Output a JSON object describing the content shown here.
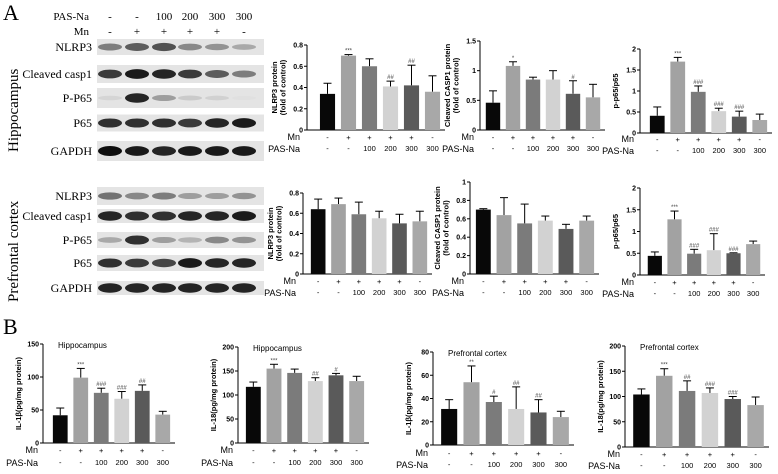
{
  "panel_labels": {
    "a": "A",
    "b": "B"
  },
  "regions": {
    "hippocampus": "Hippocampus",
    "prefrontal": "Prefrontal cortex"
  },
  "blot": {
    "header_pas_label": "PAS-Na",
    "header_mn_label": "Mn",
    "pas_values": [
      "-",
      "-",
      "100",
      "200",
      "300",
      "300"
    ],
    "mn_values": [
      "-",
      "+",
      "+",
      "+",
      "+",
      "-"
    ],
    "hippocampus_rows": [
      {
        "label": "NLRP3",
        "intensity": [
          0.5,
          0.65,
          0.7,
          0.45,
          0.4,
          0.3
        ]
      },
      {
        "label": "Cleaved casp1",
        "intensity": [
          0.8,
          0.95,
          0.9,
          0.8,
          0.65,
          0.5
        ]
      },
      {
        "label": "P-P65",
        "intensity": [
          0.1,
          0.9,
          0.35,
          0.15,
          0.12,
          0.05
        ]
      },
      {
        "label": "P65",
        "intensity": [
          0.85,
          0.85,
          0.85,
          0.8,
          0.9,
          0.95
        ]
      },
      {
        "label": "GAPDH",
        "intensity": [
          1,
          0.95,
          0.9,
          0.95,
          0.95,
          0.95
        ]
      }
    ],
    "prefrontal_rows": [
      {
        "label": "NLRP3",
        "intensity": [
          0.55,
          0.45,
          0.5,
          0.35,
          0.35,
          0.4
        ]
      },
      {
        "label": "Cleaved casp1",
        "intensity": [
          0.9,
          0.85,
          0.85,
          0.9,
          0.9,
          0.95
        ]
      },
      {
        "label": "P-P65",
        "intensity": [
          0.3,
          0.85,
          0.35,
          0.25,
          0.45,
          0.4
        ]
      },
      {
        "label": "P65",
        "intensity": [
          0.85,
          0.8,
          0.75,
          0.95,
          0.9,
          0.9
        ]
      },
      {
        "label": "GAPDH",
        "intensity": [
          0.9,
          0.9,
          0.9,
          0.9,
          0.9,
          0.9
        ]
      }
    ]
  },
  "bar_colors": [
    "#080808",
    "#a2a2a2",
    "#7b7b7b",
    "#d2d2d2",
    "#5a5a5a",
    "#a8a8a8"
  ],
  "chart_data": [
    {
      "id": "a-hip-nlrp3",
      "type": "bar",
      "title": "",
      "ylabel": "NLRP3 protein\n(fold of control)",
      "ylim": [
        0,
        0.8
      ],
      "yticks": [
        "0.0",
        "0.2",
        "0.4",
        "0.6",
        "0.8"
      ],
      "tick_values": [
        0,
        0.2,
        0.4,
        0.6,
        0.8
      ],
      "row_labels": [
        "Mn",
        "PAS-Na"
      ],
      "mn": [
        "-",
        "+",
        "+",
        "+",
        "+",
        "-"
      ],
      "pas": [
        "-",
        "-",
        "100",
        "200",
        "300",
        "300"
      ],
      "values": [
        0.34,
        0.7,
        0.6,
        0.41,
        0.42,
        0.36
      ],
      "errors": [
        0.1,
        0.01,
        0.07,
        0.05,
        0.19,
        0.15
      ],
      "significance": [
        "",
        "***",
        "",
        "##",
        "##",
        ""
      ]
    },
    {
      "id": "a-hip-casp1",
      "type": "bar",
      "title": "",
      "ylabel": "Cleaved CASP1 protein\n(fold of control)",
      "ylim": [
        0,
        1.5
      ],
      "yticks": [
        "0.0",
        "0.5",
        "1.0",
        "1.5"
      ],
      "tick_values": [
        0,
        0.5,
        1.0,
        1.5
      ],
      "row_labels": [
        "Mn",
        "PAS-Na"
      ],
      "mn": [
        "-",
        "+",
        "+",
        "+",
        "+",
        "-"
      ],
      "pas": [
        "-",
        "-",
        "100",
        "200",
        "300",
        "300"
      ],
      "values": [
        0.46,
        1.08,
        0.85,
        0.85,
        0.61,
        0.55
      ],
      "errors": [
        0.2,
        0.07,
        0.04,
        0.15,
        0.22,
        0.22
      ],
      "significance": [
        "",
        "*",
        "",
        "",
        "#",
        ""
      ]
    },
    {
      "id": "a-hip-p65",
      "type": "bar",
      "title": "",
      "ylabel": "p-p65/p65",
      "ylim": [
        0,
        2.0
      ],
      "yticks": [
        "0.0",
        "0.5",
        "1.0",
        "1.5",
        "2.0"
      ],
      "tick_values": [
        0,
        0.5,
        1.0,
        1.5,
        2.0
      ],
      "row_labels": [
        "Mn",
        "PAS-Na"
      ],
      "mn": [
        "-",
        "+",
        "+",
        "+",
        "+",
        "-"
      ],
      "pas": [
        "-",
        "-",
        "100",
        "200",
        "300",
        "300"
      ],
      "values": [
        0.41,
        1.7,
        0.98,
        0.52,
        0.39,
        0.31
      ],
      "errors": [
        0.21,
        0.1,
        0.14,
        0.07,
        0.13,
        0.14
      ],
      "significance": [
        "",
        "***",
        "###",
        "###",
        "###",
        ""
      ]
    },
    {
      "id": "a-pfc-nlrp3",
      "type": "bar",
      "title": "",
      "ylabel": "NLRP3 protein\n(fold of control)",
      "ylim": [
        0,
        0.8
      ],
      "yticks": [
        "0.0",
        "0.2",
        "0.4",
        "0.6",
        "0.8"
      ],
      "tick_values": [
        0,
        0.2,
        0.4,
        0.6,
        0.8
      ],
      "row_labels": [
        "Mn",
        "PAS-Na"
      ],
      "mn": [
        "-",
        "+",
        "+",
        "+",
        "+",
        "-"
      ],
      "pas": [
        "-",
        "-",
        "100",
        "200",
        "300",
        "300"
      ],
      "values": [
        0.64,
        0.69,
        0.59,
        0.55,
        0.5,
        0.52
      ],
      "errors": [
        0.1,
        0.06,
        0.12,
        0.07,
        0.09,
        0.1
      ],
      "significance": [
        "",
        "",
        "",
        "",
        "",
        ""
      ]
    },
    {
      "id": "a-pfc-casp1",
      "type": "bar",
      "title": "",
      "ylabel": "Cleaved CASP1 protein\n(fold of control)",
      "ylim": [
        0,
        1.0
      ],
      "yticks": [
        "0.0",
        "0.2",
        "0.4",
        "0.6",
        "0.8",
        "1.0"
      ],
      "tick_values": [
        0,
        0.2,
        0.4,
        0.6,
        0.8,
        1.0
      ],
      "row_labels": [
        "Mn",
        "PAS-Na"
      ],
      "mn": [
        "-",
        "+",
        "+",
        "+",
        "+",
        "-"
      ],
      "pas": [
        "-",
        "-",
        "100",
        "200",
        "300",
        "300"
      ],
      "values": [
        0.7,
        0.64,
        0.55,
        0.58,
        0.49,
        0.58
      ],
      "errors": [
        0.01,
        0.19,
        0.21,
        0.05,
        0.05,
        0.05
      ],
      "significance": [
        "",
        "",
        "",
        "",
        "",
        ""
      ]
    },
    {
      "id": "a-pfc-p65",
      "type": "bar",
      "title": "",
      "ylabel": "p-p65/p65",
      "ylim": [
        0,
        2.0
      ],
      "yticks": [
        "0.0",
        "0.5",
        "1.0",
        "1.5",
        "2.0"
      ],
      "tick_values": [
        0,
        0.5,
        1.0,
        1.5,
        2.0
      ],
      "row_labels": [
        "Mn",
        "PAS-Na"
      ],
      "mn": [
        "-",
        "+",
        "+",
        "+",
        "+",
        "-"
      ],
      "pas": [
        "-",
        "-",
        "100",
        "200",
        "300",
        "300"
      ],
      "values": [
        0.44,
        1.28,
        0.49,
        0.57,
        0.5,
        0.71
      ],
      "errors": [
        0.09,
        0.19,
        0.1,
        0.38,
        0.01,
        0.07
      ],
      "significance": [
        "",
        "***",
        "###",
        "###",
        "###",
        ""
      ]
    },
    {
      "id": "b-hip-il1b",
      "type": "bar",
      "title": "Hippocampus",
      "ylabel": "IL-1β(pg/mg protein)",
      "ylim": [
        0,
        150
      ],
      "yticks": [
        "0",
        "50",
        "100",
        "150"
      ],
      "tick_values": [
        0,
        50,
        100,
        150
      ],
      "row_labels": [
        "Mn",
        "PAS-Na"
      ],
      "mn": [
        "-",
        "+",
        "+",
        "+",
        "+",
        "-"
      ],
      "pas": [
        "-",
        "-",
        "100",
        "200",
        "300",
        "300"
      ],
      "values": [
        42,
        99,
        76,
        67,
        79,
        43
      ],
      "errors": [
        11,
        14,
        7,
        11,
        9,
        5
      ],
      "significance": [
        "",
        "***",
        "###",
        "###",
        "##",
        ""
      ]
    },
    {
      "id": "b-hip-il18",
      "type": "bar",
      "title": "Hippocampus",
      "ylabel": "IL-18(pg/mg protein)",
      "ylim": [
        0,
        200
      ],
      "yticks": [
        "0",
        "50",
        "100",
        "150",
        "200"
      ],
      "tick_values": [
        0,
        50,
        100,
        150,
        200
      ],
      "row_labels": [
        "Mn",
        "PAS-Na"
      ],
      "mn": [
        "-",
        "+",
        "+",
        "+",
        "+",
        "-"
      ],
      "pas": [
        "-",
        "-",
        "100",
        "200",
        "300",
        "300"
      ],
      "values": [
        117,
        155,
        146,
        129,
        141,
        129
      ],
      "errors": [
        10,
        9,
        8,
        7,
        4,
        10
      ],
      "significance": [
        "",
        "***",
        "",
        "##",
        "#",
        ""
      ]
    },
    {
      "id": "b-pfc-il1b",
      "type": "bar",
      "title": "Prefrontal cortex",
      "ylabel": "IL-1β(pg/mg protein)",
      "ylim": [
        0,
        80
      ],
      "yticks": [
        "0",
        "20",
        "40",
        "60",
        "80"
      ],
      "tick_values": [
        0,
        20,
        40,
        60,
        80
      ],
      "row_labels": [
        "Mn",
        "PAS-Na"
      ],
      "mn": [
        "-",
        "+",
        "+",
        "+",
        "+",
        "-"
      ],
      "pas": [
        "-",
        "-",
        "100",
        "200",
        "300",
        "300"
      ],
      "values": [
        31,
        54,
        37,
        31,
        28,
        24
      ],
      "errors": [
        8,
        14,
        5,
        19,
        11,
        5
      ],
      "significance": [
        "",
        "**",
        "#",
        "##",
        "##",
        ""
      ]
    },
    {
      "id": "b-pfc-il18",
      "type": "bar",
      "title": "Prefrontal cortex",
      "ylabel": "IL-18(pg/mg protein)",
      "ylim": [
        0,
        200
      ],
      "yticks": [
        "0",
        "50",
        "100",
        "150",
        "200"
      ],
      "tick_values": [
        0,
        50,
        100,
        150,
        200
      ],
      "row_labels": [
        "Mn",
        "PAS-Na"
      ],
      "mn": [
        "-",
        "+",
        "+",
        "+",
        "+",
        "-"
      ],
      "pas": [
        "-",
        "-",
        "100",
        "200",
        "300",
        "300"
      ],
      "values": [
        104,
        141,
        111,
        107,
        95,
        83
      ],
      "errors": [
        11,
        14,
        20,
        10,
        5,
        16
      ],
      "significance": [
        "",
        "***",
        "##",
        "###",
        "###",
        ""
      ]
    }
  ]
}
